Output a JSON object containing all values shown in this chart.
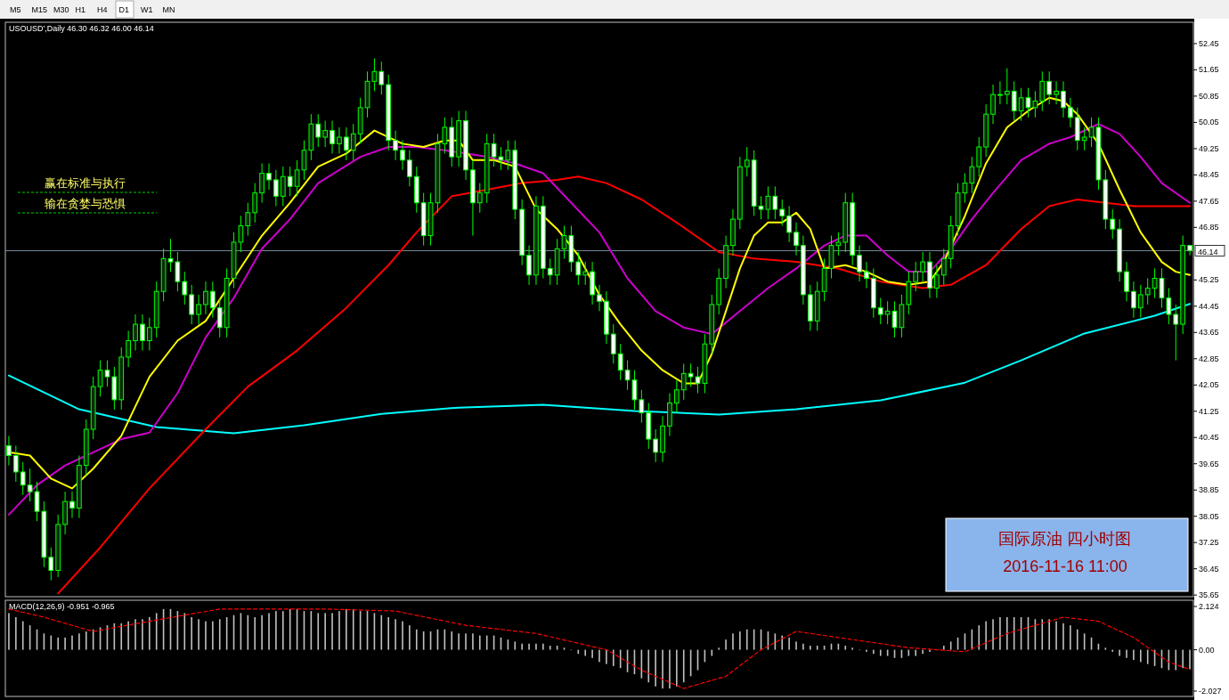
{
  "chart_data": [
    {
      "type": "candlestick",
      "title": "USOUSD',Daily  46.30 46.32 46.00 46.14",
      "color": "#00ff00",
      "categories": [
        null,
        null,
        null,
        null,
        null,
        null,
        null,
        null,
        null,
        null,
        null,
        null,
        null,
        null,
        null,
        null,
        null,
        null,
        null,
        null,
        null,
        null,
        null,
        null,
        null,
        null,
        null,
        null,
        null,
        null,
        null,
        null,
        null,
        null,
        null,
        null,
        null,
        null,
        null,
        null,
        null,
        null,
        null,
        null,
        null,
        null,
        null,
        null,
        null,
        null,
        null,
        null,
        null,
        null,
        null,
        null,
        null,
        null,
        null,
        null,
        null,
        null,
        null,
        null,
        null,
        null,
        null,
        null,
        null,
        null,
        null,
        null,
        null,
        null,
        null,
        null,
        null,
        null,
        null,
        null,
        null,
        null,
        null,
        null,
        null,
        null,
        null,
        null,
        null,
        null,
        null,
        null,
        null,
        null,
        null,
        null,
        null,
        null,
        null,
        null,
        null,
        null,
        null,
        null,
        null,
        null,
        null,
        null,
        null,
        null,
        null,
        null,
        null,
        null,
        null,
        null,
        null,
        null,
        null,
        null,
        null,
        null,
        null,
        null,
        null,
        null,
        null,
        null,
        null,
        null,
        null,
        null,
        null,
        null,
        null,
        null,
        null,
        null,
        null,
        null,
        null,
        null,
        null,
        null,
        null,
        null,
        null,
        null,
        null,
        null,
        null,
        null,
        null,
        null,
        null,
        null,
        null,
        null,
        null,
        null,
        null,
        null,
        null,
        null,
        null,
        null,
        null,
        null,
        null
      ],
      "ohlc": [
        [
          40.2,
          40.5,
          39.6,
          39.9
        ],
        [
          39.9,
          40.2,
          39.1,
          39.4
        ],
        [
          39.4,
          39.7,
          38.7,
          39.0
        ],
        [
          39.0,
          39.5,
          38.5,
          38.8
        ],
        [
          38.8,
          39.1,
          37.9,
          38.2
        ],
        [
          38.2,
          38.5,
          36.5,
          36.8
        ],
        [
          36.8,
          37.1,
          36.1,
          36.4
        ],
        [
          36.4,
          38.1,
          36.2,
          37.8
        ],
        [
          37.8,
          38.8,
          37.5,
          38.5
        ],
        [
          38.5,
          38.8,
          38.0,
          38.3
        ],
        [
          38.3,
          39.9,
          38.0,
          39.6
        ],
        [
          39.6,
          41.0,
          39.3,
          40.7
        ],
        [
          40.7,
          42.3,
          40.4,
          42.0
        ],
        [
          42.0,
          42.8,
          41.7,
          42.5
        ],
        [
          42.5,
          42.8,
          42.0,
          42.3
        ],
        [
          42.3,
          42.6,
          41.3,
          41.6
        ],
        [
          41.6,
          43.2,
          41.3,
          42.9
        ],
        [
          42.9,
          43.7,
          42.6,
          43.4
        ],
        [
          43.4,
          44.2,
          43.1,
          43.9
        ],
        [
          43.9,
          44.2,
          43.1,
          43.4
        ],
        [
          43.4,
          44.1,
          43.1,
          43.8
        ],
        [
          43.8,
          45.2,
          43.5,
          44.9
        ],
        [
          44.9,
          46.2,
          44.6,
          45.9
        ],
        [
          45.9,
          46.5,
          45.5,
          45.8
        ],
        [
          45.8,
          46.1,
          44.9,
          45.2
        ],
        [
          45.2,
          45.5,
          44.5,
          44.8
        ],
        [
          44.8,
          45.1,
          43.9,
          44.2
        ],
        [
          44.2,
          44.8,
          43.9,
          44.5
        ],
        [
          44.5,
          45.2,
          44.2,
          44.9
        ],
        [
          44.9,
          45.2,
          44.1,
          44.4
        ],
        [
          44.4,
          44.7,
          43.5,
          43.8
        ],
        [
          43.8,
          45.6,
          43.5,
          45.3
        ],
        [
          45.3,
          46.7,
          45.0,
          46.4
        ],
        [
          46.4,
          47.2,
          46.1,
          46.9
        ],
        [
          46.9,
          47.6,
          46.6,
          47.3
        ],
        [
          47.3,
          48.2,
          47.0,
          47.9
        ],
        [
          47.9,
          48.8,
          47.6,
          48.5
        ],
        [
          48.5,
          48.8,
          48.0,
          48.3
        ],
        [
          48.3,
          48.6,
          47.5,
          47.8
        ],
        [
          47.8,
          48.7,
          47.5,
          48.4
        ],
        [
          48.4,
          48.7,
          47.8,
          48.1
        ],
        [
          48.1,
          48.9,
          47.8,
          48.6
        ],
        [
          48.6,
          49.5,
          48.3,
          49.2
        ],
        [
          49.2,
          50.3,
          48.9,
          50.0
        ],
        [
          50.0,
          50.3,
          49.3,
          49.6
        ],
        [
          49.6,
          50.1,
          49.3,
          49.8
        ],
        [
          49.8,
          50.1,
          49.1,
          49.4
        ],
        [
          49.4,
          49.9,
          49.1,
          49.6
        ],
        [
          49.6,
          49.9,
          48.9,
          49.2
        ],
        [
          49.2,
          50.0,
          48.9,
          49.7
        ],
        [
          49.7,
          50.8,
          49.4,
          50.5
        ],
        [
          50.5,
          51.6,
          50.2,
          51.3
        ],
        [
          51.3,
          52.0,
          51.0,
          51.6
        ],
        [
          51.6,
          51.9,
          50.9,
          51.2
        ],
        [
          51.2,
          51.5,
          49.2,
          49.5
        ],
        [
          49.5,
          49.8,
          48.9,
          49.2
        ],
        [
          49.2,
          49.5,
          48.6,
          48.9
        ],
        [
          48.9,
          49.2,
          48.1,
          48.4
        ],
        [
          48.4,
          48.7,
          47.3,
          47.6
        ],
        [
          47.6,
          47.9,
          46.3,
          46.6
        ],
        [
          46.6,
          47.9,
          46.3,
          47.6
        ],
        [
          47.6,
          49.7,
          47.3,
          49.4
        ],
        [
          49.4,
          50.2,
          49.1,
          49.9
        ],
        [
          49.9,
          50.2,
          48.7,
          49.0
        ],
        [
          49.0,
          50.4,
          48.7,
          50.1
        ],
        [
          50.1,
          50.4,
          48.3,
          48.6
        ],
        [
          48.6,
          48.9,
          46.6,
          47.6
        ],
        [
          47.6,
          48.2,
          47.3,
          47.9
        ],
        [
          47.9,
          49.7,
          47.6,
          49.4
        ],
        [
          49.4,
          49.7,
          48.7,
          49.0
        ],
        [
          49.0,
          49.3,
          48.6,
          48.9
        ],
        [
          48.9,
          49.5,
          48.6,
          49.2
        ],
        [
          49.2,
          49.5,
          47.1,
          47.4
        ],
        [
          47.4,
          47.7,
          45.7,
          46.0
        ],
        [
          46.0,
          46.3,
          45.1,
          45.4
        ],
        [
          45.4,
          47.8,
          45.1,
          47.5
        ],
        [
          47.5,
          47.8,
          45.3,
          45.6
        ],
        [
          45.6,
          45.9,
          45.1,
          45.4
        ],
        [
          45.4,
          46.5,
          45.1,
          46.2
        ],
        [
          46.2,
          46.9,
          45.9,
          46.6
        ],
        [
          46.6,
          46.9,
          45.5,
          45.8
        ],
        [
          45.8,
          46.1,
          45.1,
          45.4
        ],
        [
          45.4,
          45.8,
          45.1,
          45.5
        ],
        [
          45.5,
          45.8,
          44.5,
          44.8
        ],
        [
          44.8,
          45.1,
          44.3,
          44.6
        ],
        [
          44.6,
          44.9,
          43.3,
          43.6
        ],
        [
          43.6,
          43.9,
          42.7,
          43.0
        ],
        [
          43.0,
          43.3,
          42.2,
          42.5
        ],
        [
          42.5,
          42.8,
          41.9,
          42.2
        ],
        [
          42.2,
          42.5,
          41.3,
          41.6
        ],
        [
          41.6,
          41.9,
          40.9,
          41.2
        ],
        [
          41.2,
          41.5,
          40.1,
          40.4
        ],
        [
          40.4,
          40.7,
          39.7,
          40.0
        ],
        [
          40.0,
          41.1,
          39.7,
          40.8
        ],
        [
          40.8,
          41.8,
          40.5,
          41.5
        ],
        [
          41.5,
          42.2,
          41.2,
          41.9
        ],
        [
          41.9,
          42.7,
          41.6,
          42.4
        ],
        [
          42.4,
          42.7,
          42.0,
          42.3
        ],
        [
          42.3,
          42.6,
          41.8,
          42.1
        ],
        [
          42.1,
          43.6,
          41.8,
          43.3
        ],
        [
          43.3,
          44.8,
          43.0,
          44.5
        ],
        [
          44.5,
          45.6,
          44.2,
          45.3
        ],
        [
          45.3,
          46.6,
          45.0,
          46.3
        ],
        [
          46.3,
          47.4,
          46.0,
          47.1
        ],
        [
          47.1,
          49.0,
          46.8,
          48.7
        ],
        [
          48.7,
          49.3,
          48.4,
          48.9
        ],
        [
          48.9,
          49.2,
          47.2,
          47.5
        ],
        [
          47.5,
          47.8,
          47.1,
          47.4
        ],
        [
          47.4,
          48.1,
          47.1,
          47.8
        ],
        [
          47.8,
          48.1,
          47.1,
          47.4
        ],
        [
          47.4,
          47.7,
          46.9,
          47.2
        ],
        [
          47.2,
          47.5,
          46.4,
          46.7
        ],
        [
          46.7,
          47.0,
          46.0,
          46.3
        ],
        [
          46.3,
          46.6,
          44.5,
          44.8
        ],
        [
          44.8,
          45.1,
          43.7,
          44.0
        ],
        [
          44.0,
          45.2,
          43.7,
          44.9
        ],
        [
          44.9,
          45.9,
          44.6,
          45.6
        ],
        [
          45.6,
          46.6,
          45.3,
          46.3
        ],
        [
          46.3,
          46.7,
          46.0,
          46.4
        ],
        [
          46.4,
          47.9,
          46.1,
          47.6
        ],
        [
          47.6,
          47.9,
          45.7,
          46.0
        ],
        [
          46.0,
          46.3,
          45.2,
          45.5
        ],
        [
          45.5,
          45.8,
          45.0,
          45.3
        ],
        [
          45.3,
          45.6,
          44.1,
          44.4
        ],
        [
          44.4,
          44.7,
          43.9,
          44.2
        ],
        [
          44.2,
          44.6,
          43.9,
          44.3
        ],
        [
          44.3,
          44.6,
          43.5,
          43.8
        ],
        [
          43.8,
          44.8,
          43.5,
          44.5
        ],
        [
          44.5,
          45.5,
          44.2,
          45.2
        ],
        [
          45.2,
          45.8,
          44.9,
          45.5
        ],
        [
          45.5,
          46.1,
          45.2,
          45.8
        ],
        [
          45.8,
          46.1,
          44.7,
          45.0
        ],
        [
          45.0,
          45.7,
          44.7,
          45.4
        ],
        [
          45.4,
          46.2,
          45.1,
          45.9
        ],
        [
          45.9,
          47.2,
          45.6,
          46.9
        ],
        [
          46.9,
          48.2,
          46.6,
          47.9
        ],
        [
          47.9,
          48.5,
          47.6,
          48.2
        ],
        [
          48.2,
          49.0,
          47.9,
          48.7
        ],
        [
          48.7,
          49.6,
          48.4,
          49.3
        ],
        [
          49.3,
          50.6,
          49.0,
          50.3
        ],
        [
          50.3,
          51.2,
          50.0,
          50.9
        ],
        [
          50.9,
          51.3,
          50.6,
          50.9
        ],
        [
          50.9,
          51.7,
          50.6,
          51.0
        ],
        [
          51.0,
          51.3,
          50.1,
          50.4
        ],
        [
          50.4,
          51.1,
          50.1,
          50.8
        ],
        [
          50.8,
          51.1,
          50.2,
          50.5
        ],
        [
          50.5,
          51.0,
          50.2,
          50.7
        ],
        [
          50.7,
          51.6,
          50.4,
          51.3
        ],
        [
          51.3,
          51.6,
          50.6,
          50.9
        ],
        [
          50.9,
          51.3,
          50.6,
          51.0
        ],
        [
          51.0,
          51.3,
          50.2,
          50.5
        ],
        [
          50.5,
          50.8,
          49.9,
          50.2
        ],
        [
          50.2,
          50.5,
          49.2,
          49.5
        ],
        [
          49.5,
          49.9,
          49.2,
          49.6
        ],
        [
          49.6,
          50.2,
          49.3,
          49.9
        ],
        [
          49.9,
          50.2,
          48.0,
          48.3
        ],
        [
          48.3,
          48.6,
          46.8,
          47.1
        ],
        [
          47.1,
          47.4,
          46.5,
          46.8
        ],
        [
          46.8,
          47.1,
          45.2,
          45.5
        ],
        [
          45.5,
          45.8,
          44.6,
          44.9
        ],
        [
          44.9,
          45.2,
          44.1,
          44.4
        ],
        [
          44.4,
          45.1,
          44.1,
          44.8
        ],
        [
          44.8,
          45.3,
          44.5,
          45.0
        ],
        [
          45.0,
          45.6,
          44.7,
          45.3
        ],
        [
          45.3,
          45.6,
          44.4,
          44.7
        ],
        [
          44.7,
          45.0,
          43.9,
          44.2
        ],
        [
          44.2,
          44.5,
          42.8,
          43.9
        ],
        [
          43.9,
          46.6,
          43.6,
          46.3
        ],
        [
          46.3,
          46.32,
          46.0,
          46.14
        ]
      ],
      "series": [
        {
          "type": "line",
          "color": "#00ffff",
          "values": [
            42.34,
            null,
            null,
            null,
            null,
            null,
            null,
            null,
            null,
            null,
            41.31,
            null,
            null,
            null,
            null,
            null,
            null,
            null,
            null,
            null,
            null,
            40.77,
            null,
            null,
            null,
            null,
            null,
            null,
            null,
            null,
            null,
            null,
            40.58,
            null,
            null,
            null,
            null,
            null,
            null,
            null,
            null,
            null,
            40.82,
            null,
            null,
            null,
            null,
            null,
            null,
            null,
            null,
            null,
            null,
            41.17,
            null,
            null,
            null,
            null,
            null,
            null,
            null,
            null,
            null,
            null,
            41.36,
            null,
            null,
            null,
            null,
            null,
            null,
            null,
            null,
            null,
            null,
            null,
            41.45,
            null,
            null,
            null,
            null,
            null,
            null,
            null,
            null,
            null,
            null,
            null,
            null,
            41.26,
            null,
            null,
            null,
            null,
            null,
            null,
            null,
            null,
            null,
            null,
            null,
            41.15,
            null,
            null,
            null,
            null,
            null,
            null,
            null,
            null,
            null,
            null,
            41.31,
            null,
            null,
            null,
            null,
            null,
            null,
            null,
            null,
            null,
            null,
            null,
            41.58,
            null,
            null,
            null,
            null,
            null,
            null,
            null,
            null,
            null,
            null,
            null,
            42.12,
            null,
            null,
            null,
            null,
            null,
            null,
            null,
            42.8,
            null,
            null,
            null,
            null,
            null,
            null,
            null,
            null,
            43.62,
            null,
            null,
            null,
            null,
            null,
            null,
            null,
            null,
            null,
            44.16,
            null,
            null,
            null,
            null,
            44.52
          ]
        },
        {
          "type": "line",
          "color": "#ff0000",
          "values": [
            null,
            null,
            null,
            null,
            null,
            null,
            null,
            35.7,
            null,
            null,
            null,
            null,
            null,
            37.1,
            null,
            null,
            null,
            null,
            null,
            null,
            38.9,
            null,
            null,
            null,
            null,
            null,
            null,
            null,
            40.7,
            null,
            null,
            null,
            null,
            null,
            42.0,
            null,
            null,
            null,
            null,
            null,
            null,
            43.1,
            null,
            null,
            null,
            null,
            null,
            null,
            44.4,
            null,
            null,
            null,
            null,
            null,
            45.7,
            null,
            null,
            null,
            46.7,
            null,
            null,
            null,
            null,
            47.8,
            null,
            null,
            null,
            null,
            48.0,
            null,
            null,
            null,
            null,
            48.2,
            null,
            null,
            null,
            null,
            48.3,
            null,
            null,
            48.4,
            null,
            null,
            null,
            48.2,
            null,
            null,
            null,
            null,
            47.7,
            null,
            null,
            null,
            null,
            47.0,
            null,
            null,
            null,
            null,
            null,
            46.1,
            null,
            null,
            null,
            null,
            45.9,
            null,
            null,
            null,
            null,
            null,
            45.8,
            null,
            null,
            null,
            null,
            null,
            45.6,
            null,
            null,
            null,
            null,
            null,
            45.2,
            null,
            null,
            null,
            null,
            null,
            45.0,
            null,
            null,
            null,
            45.1,
            null,
            null,
            null,
            null,
            45.7,
            null,
            null,
            null,
            null,
            46.8,
            null,
            null,
            null,
            47.5,
            null,
            null,
            null,
            47.7,
            null,
            null,
            null,
            47.6,
            null,
            null,
            null,
            47.5,
            null,
            null,
            null,
            47.5,
            null,
            null,
            null,
            47.5
          ]
        },
        {
          "type": "line",
          "color": "#cc00cc",
          "values": [
            38.1,
            null,
            null,
            null,
            39.0,
            null,
            null,
            null,
            39.6,
            null,
            null,
            null,
            40.0,
            null,
            null,
            null,
            40.4,
            null,
            null,
            null,
            40.6,
            null,
            null,
            null,
            41.8,
            null,
            null,
            null,
            43.5,
            null,
            null,
            null,
            44.7,
            null,
            null,
            null,
            46.2,
            null,
            null,
            null,
            47.1,
            null,
            null,
            null,
            48.2,
            null,
            null,
            null,
            null,
            null,
            49.0,
            null,
            null,
            null,
            49.3,
            null,
            null,
            null,
            49.3,
            null,
            null,
            null,
            49.2,
            null,
            null,
            null,
            null,
            null,
            49.0,
            null,
            null,
            null,
            48.8,
            null,
            null,
            null,
            48.5,
            null,
            null,
            null,
            47.6,
            null,
            null,
            null,
            46.7,
            null,
            null,
            null,
            45.3,
            null,
            null,
            null,
            44.3,
            null,
            null,
            null,
            43.8,
            null,
            null,
            null,
            43.6,
            null,
            null,
            null,
            44.3,
            null,
            null,
            null,
            45.0,
            null,
            null,
            null,
            45.6,
            null,
            null,
            null,
            46.3,
            null,
            null,
            46.6,
            null,
            null,
            46.6,
            null,
            null,
            46.0,
            null,
            null,
            45.5,
            null,
            null,
            45.5,
            null,
            null,
            46.2,
            null,
            null,
            47.1,
            null,
            null,
            47.9,
            null,
            null,
            null,
            48.9,
            null,
            null,
            null,
            49.4,
            null,
            null,
            49.6,
            null,
            null,
            null,
            50.0,
            null,
            null,
            49.7,
            null,
            null,
            49.0,
            null,
            null,
            48.2,
            null,
            null,
            null,
            47.6
          ]
        },
        {
          "type": "line",
          "color": "#ffff00",
          "values": [
            40.0,
            null,
            null,
            39.9,
            null,
            null,
            39.2,
            null,
            null,
            38.9,
            null,
            null,
            39.5,
            null,
            null,
            null,
            40.5,
            null,
            null,
            null,
            42.3,
            null,
            null,
            null,
            43.4,
            null,
            null,
            null,
            44.0,
            null,
            null,
            null,
            45.3,
            null,
            null,
            null,
            46.6,
            null,
            null,
            null,
            47.6,
            null,
            null,
            null,
            48.7,
            null,
            null,
            null,
            49.1,
            null,
            null,
            null,
            49.8,
            null,
            null,
            null,
            49.4,
            null,
            null,
            49.3,
            null,
            null,
            49.5,
            null,
            49.5,
            null,
            48.9,
            null,
            null,
            48.9,
            null,
            null,
            48.7,
            null,
            null,
            47.4,
            null,
            null,
            46.8,
            null,
            null,
            46.0,
            null,
            null,
            44.8,
            null,
            null,
            43.9,
            null,
            null,
            43.1,
            null,
            null,
            42.5,
            null,
            null,
            42.1,
            null,
            42.1,
            null,
            43.0,
            null,
            44.3,
            null,
            45.6,
            null,
            46.6,
            null,
            47.0,
            null,
            47.0,
            null,
            47.3,
            null,
            46.8,
            null,
            45.6,
            null,
            null,
            45.7,
            null,
            null,
            45.5,
            null,
            null,
            45.2,
            null,
            null,
            45.1,
            null,
            null,
            45.2,
            null,
            45.8,
            null,
            null,
            47.2,
            null,
            null,
            48.8,
            null,
            null,
            49.9,
            null,
            null,
            50.4,
            null,
            null,
            50.8,
            null,
            50.7,
            null,
            50.3,
            null,
            null,
            49.4,
            null,
            null,
            48.0,
            null,
            null,
            46.7,
            null,
            null,
            45.8,
            null,
            45.5,
            null,
            45.4
          ]
        }
      ],
      "ylim": [
        35.6,
        53.1
      ],
      "yticks": [
        52.45,
        51.65,
        50.85,
        50.05,
        49.25,
        48.45,
        47.65,
        46.85,
        45.25,
        44.45,
        43.65,
        42.85,
        42.05,
        41.25,
        40.45,
        39.65,
        38.85,
        38.05,
        37.25,
        36.45,
        35.65
      ],
      "ref_lines": [
        {
          "axis": "y",
          "value": 46.14,
          "label": "46.14",
          "color": "#778899"
        }
      ],
      "annotations": [
        "M5",
        "M15",
        "M30",
        "H1",
        "H4",
        "D1",
        "W1",
        "MN",
        "赢在标准与执行",
        "输在贪婪与恐惧",
        "国际原油  四小时图",
        "2016-11-16  11:00"
      ]
    },
    {
      "type": "bar",
      "title": "MACD(12,26,9) -0.951 -0.965",
      "categories": [
        null,
        null,
        null,
        null,
        null,
        null,
        null,
        null,
        null,
        null,
        null,
        null,
        null,
        null,
        null,
        null,
        null,
        null,
        null,
        null,
        null,
        null,
        null,
        null,
        null,
        null,
        null,
        null,
        null,
        null,
        null,
        null,
        null,
        null,
        null,
        null,
        null,
        null,
        null,
        null,
        null,
        null,
        null,
        null,
        null,
        null,
        null,
        null,
        null,
        null,
        null,
        null,
        null,
        null,
        null,
        null,
        null,
        null,
        null,
        null,
        null,
        null,
        null,
        null,
        null,
        null,
        null,
        null,
        null,
        null,
        null,
        null,
        null,
        null,
        null,
        null,
        null,
        null,
        null,
        null,
        null,
        null,
        null,
        null,
        null,
        null,
        null,
        null,
        null,
        null,
        null,
        null,
        null,
        null,
        null,
        null,
        null,
        null,
        null,
        null,
        null,
        null,
        null,
        null,
        null,
        null,
        null,
        null,
        null,
        null,
        null,
        null,
        null,
        null,
        null,
        null,
        null,
        null,
        null,
        null,
        null,
        null,
        null,
        null,
        null,
        null,
        null,
        null,
        null,
        null,
        null,
        null,
        null,
        null,
        null,
        null,
        null,
        null,
        null,
        null,
        null,
        null,
        null,
        null,
        null,
        null,
        null,
        null,
        null,
        null,
        null,
        null,
        null,
        null,
        null,
        null,
        null,
        null,
        null,
        null,
        null,
        null,
        null,
        null,
        null,
        null,
        null,
        null,
        null
      ],
      "series": [
        {
          "type": "bar",
          "color": "#c0c0c0",
          "values": [
            1.8,
            1.6,
            1.4,
            1.2,
            1.0,
            0.8,
            0.7,
            0.6,
            0.6,
            0.7,
            0.8,
            0.9,
            1.0,
            1.1,
            1.2,
            1.3,
            1.3,
            1.4,
            1.5,
            1.5,
            1.6,
            1.8,
            2.0,
            2.0,
            1.9,
            1.8,
            1.6,
            1.5,
            1.4,
            1.4,
            1.5,
            1.6,
            1.7,
            1.8,
            1.7,
            1.6,
            1.7,
            1.8,
            1.9,
            1.9,
            2.0,
            2.0,
            1.9,
            1.9,
            1.8,
            1.8,
            1.8,
            1.9,
            2.0,
            2.0,
            1.9,
            1.9,
            1.8,
            1.7,
            1.6,
            1.5,
            1.4,
            1.2,
            1.0,
            0.9,
            0.9,
            1.0,
            1.0,
            0.9,
            0.8,
            0.8,
            0.8,
            0.7,
            0.7,
            0.7,
            0.6,
            0.5,
            0.4,
            0.3,
            0.3,
            0.3,
            0.3,
            0.2,
            0.2,
            0.1,
            0.0,
            -0.2,
            -0.3,
            -0.4,
            -0.6,
            -0.7,
            -0.8,
            -0.9,
            -1.1,
            -1.2,
            -1.4,
            -1.6,
            -1.8,
            -1.9,
            -1.9,
            -1.8,
            -1.6,
            -1.3,
            -1.0,
            -0.6,
            -0.3,
            0.1,
            0.5,
            0.8,
            0.9,
            1.0,
            1.0,
            1.0,
            0.9,
            0.8,
            0.7,
            0.6,
            0.4,
            0.3,
            0.2,
            0.2,
            0.2,
            0.3,
            0.3,
            0.2,
            0.1,
            0.0,
            -0.1,
            -0.2,
            -0.3,
            -0.3,
            -0.4,
            -0.4,
            -0.3,
            -0.3,
            -0.2,
            -0.1,
            0.0,
            0.2,
            0.4,
            0.6,
            0.8,
            1.0,
            1.2,
            1.4,
            1.5,
            1.6,
            1.6,
            1.6,
            1.6,
            1.6,
            1.5,
            1.5,
            1.5,
            1.4,
            1.3,
            1.2,
            1.0,
            0.8,
            0.6,
            0.3,
            0.1,
            -0.1,
            -0.3,
            -0.4,
            -0.5,
            -0.6,
            -0.7,
            -0.8,
            -0.9,
            -1.0,
            -1.0,
            -0.9,
            -0.95
          ]
        },
        {
          "type": "line",
          "color": "#ff0000",
          "line_style": "dashed",
          "values": [
            2.0,
            null,
            null,
            null,
            null,
            1.6,
            null,
            null,
            null,
            null,
            null,
            null,
            0.9,
            null,
            null,
            null,
            null,
            null,
            null,
            null,
            1.4,
            null,
            null,
            null,
            null,
            null,
            null,
            null,
            null,
            null,
            2.0,
            null,
            null,
            null,
            null,
            null,
            null,
            null,
            null,
            null,
            null,
            null,
            null,
            null,
            null,
            2.0,
            null,
            null,
            null,
            null,
            null,
            null,
            null,
            null,
            null,
            1.9,
            null,
            null,
            null,
            null,
            null,
            null,
            null,
            null,
            null,
            1.2,
            null,
            null,
            null,
            null,
            null,
            null,
            null,
            null,
            null,
            0.8,
            null,
            null,
            null,
            null,
            null,
            null,
            null,
            null,
            null,
            0.0,
            null,
            null,
            null,
            null,
            -1.0,
            null,
            null,
            null,
            null,
            null,
            -1.9,
            null,
            null,
            null,
            null,
            null,
            -1.3,
            null,
            null,
            null,
            null,
            0.0,
            null,
            null,
            null,
            null,
            0.9,
            null,
            null,
            null,
            null,
            null,
            0.6,
            null,
            null,
            null,
            null,
            null,
            null,
            null,
            null,
            null,
            0.1,
            null,
            null,
            null,
            null,
            null,
            null,
            null,
            -0.1,
            null,
            null,
            null,
            null,
            null,
            0.8,
            null,
            null,
            null,
            null,
            null,
            null,
            null,
            1.6,
            null,
            null,
            null,
            null,
            1.4,
            null,
            null,
            null,
            null,
            0.6,
            null,
            null,
            null,
            null,
            -0.6,
            null,
            null,
            -0.97
          ]
        }
      ],
      "ylim": [
        -2.29,
        2.43
      ],
      "yticks": [
        2.124,
        {
          "value": 0,
          "label": "0.00"
        },
        -2.027
      ]
    }
  ]
}
